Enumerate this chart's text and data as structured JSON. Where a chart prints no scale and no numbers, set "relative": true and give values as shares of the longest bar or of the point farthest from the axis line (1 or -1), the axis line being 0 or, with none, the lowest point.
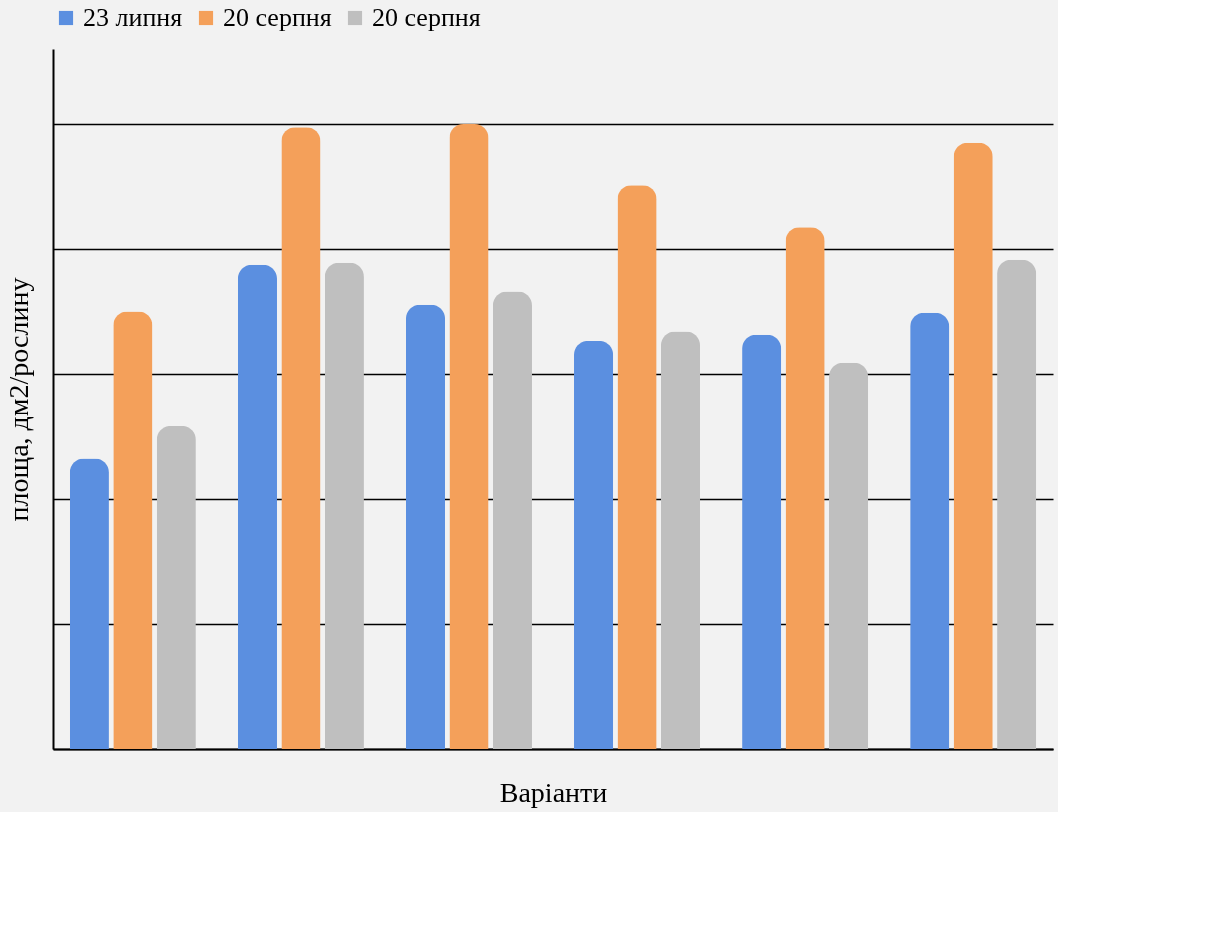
{
  "chart_data": {
    "type": "bar",
    "relative": true,
    "xlabel": "Варіанти",
    "ylabel": "площа, дм2/рослину",
    "categories": [
      null,
      null,
      null,
      null,
      null,
      null
    ],
    "series": [
      {
        "name": "23 липня",
        "color": "#5b8fe0",
        "values": [
          0.465,
          0.775,
          0.711,
          0.653,
          0.663,
          0.698
        ]
      },
      {
        "name": "20 серпня",
        "color": "#f4a05a",
        "values": [
          0.7,
          0.995,
          1.0,
          0.902,
          0.835,
          0.97
        ]
      },
      {
        "name": "20 серпня",
        "color": "#bfbfbf",
        "values": [
          0.517,
          0.778,
          0.732,
          0.668,
          0.618,
          0.783
        ]
      }
    ],
    "grid": "y",
    "legend": "top",
    "tick_labels": false
  }
}
